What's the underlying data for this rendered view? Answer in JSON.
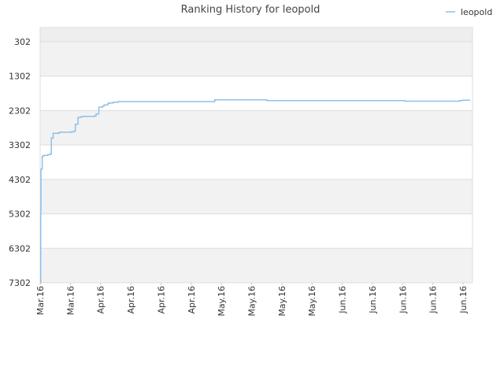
{
  "chart_data": {
    "type": "line",
    "title": "Ranking History for leopold",
    "xlabel": "",
    "ylabel": "",
    "y_inverted": true,
    "ylim": [
      7302,
      302
    ],
    "y_ticks": [
      "302",
      "1302",
      "2302",
      "3302",
      "4302",
      "5302",
      "6302",
      "7302"
    ],
    "x_tick_labels": [
      "Mar.16",
      "Mar.16",
      "Apr.16",
      "Apr.16",
      "Apr.16",
      "Apr.16",
      "May.16",
      "May.16",
      "May.16",
      "May.16",
      "Jun.16",
      "Jun.16",
      "Jun.16",
      "Jun.16",
      "Jun.16"
    ],
    "legend": {
      "position": "top-right",
      "entries": [
        "leopold"
      ]
    },
    "grid": true,
    "colors": {
      "series": "#8ec0ea",
      "band_dark": "#f2f2f2",
      "band_light": "#ffffff",
      "gridline": "#dddddd"
    },
    "series": [
      {
        "name": "leopold",
        "x": [
          0,
          0.2,
          0.3,
          0.8,
          1.0,
          1.5,
          3.0,
          4.0,
          4.3,
          5.0,
          7.0,
          7.5,
          12.0,
          13.0,
          13.5,
          14.5,
          15.5,
          16.5,
          21.0,
          21.5,
          22.5,
          24.0,
          24.5,
          26.0,
          26.5,
          28.0,
          29.0,
          30.0,
          65.0,
          67.0,
          85.0,
          87.0,
          120.0,
          140.0,
          145.0,
          150.0,
          161.0,
          162.0,
          165.0
        ],
        "y": [
          7302,
          5300,
          4000,
          3640,
          3620,
          3600,
          3580,
          3560,
          3100,
          2960,
          2950,
          2930,
          2920,
          2900,
          2700,
          2500,
          2480,
          2470,
          2450,
          2400,
          2200,
          2170,
          2140,
          2090,
          2080,
          2060,
          2060,
          2040,
          2040,
          1990,
          1990,
          2010,
          2010,
          2030,
          2030,
          2030,
          2010,
          2000,
          2000
        ]
      }
    ]
  }
}
